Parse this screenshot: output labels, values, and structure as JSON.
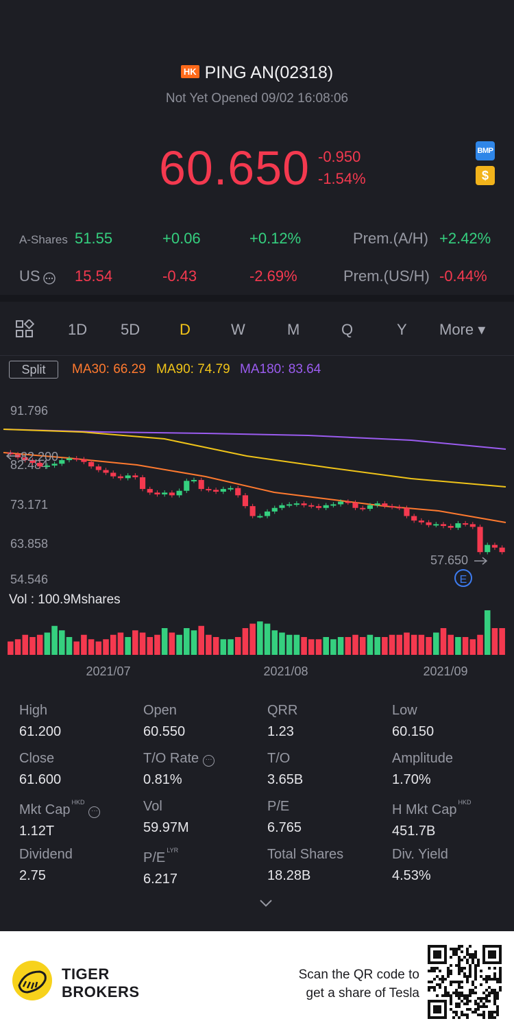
{
  "header": {
    "market_tag": "HK",
    "title": "PING AN(02318)",
    "status": "Not Yet Opened 09/02 16:08:06",
    "price": "60.650",
    "change": "-0.950",
    "change_pct": "-1.54%",
    "badge_bmp": "BMP",
    "badge_usd": "$"
  },
  "cross_listings": [
    {
      "label": "A-Shares",
      "price": "51.55",
      "change": "+0.06",
      "change_pct": "+0.12%",
      "prem_label": "Prem.(A/H)",
      "prem": "+2.42%"
    },
    {
      "label": "US",
      "price": "15.54",
      "change": "-0.43",
      "change_pct": "-2.69%",
      "prem_label": "Prem.(US/H)",
      "prem": "-0.44%"
    }
  ],
  "tabs": [
    "1D",
    "5D",
    "D",
    "W",
    "M",
    "Q",
    "Y",
    "More ▾"
  ],
  "active_tab": "D",
  "chart_controls": {
    "split": "Split",
    "ma30": "MA30: 66.29",
    "ma90": "MA90: 74.79",
    "ma180": "MA180: 83.64"
  },
  "chart_data": {
    "type": "candlestick",
    "y_ticks": [
      "91.796",
      "82.484",
      "73.171",
      "63.858",
      "54.546"
    ],
    "ylim": [
      54.546,
      91.796
    ],
    "x_ticks": [
      "2021/07",
      "2021/08",
      "2021/09"
    ],
    "high_marker": "82.200",
    "low_marker": "57.650",
    "earnings_marker": "E",
    "volume_label": "Vol  : 100.9Mshares",
    "colors": {
      "up": "#35d07f",
      "down": "#f4394f",
      "ma30": "#ff7a2f",
      "ma90": "#f0c419",
      "ma180": "#9b5cf0"
    },
    "closes": [
      82.3,
      81.6,
      81.0,
      80.4,
      79.6,
      79.8,
      80.2,
      81.0,
      81.4,
      81.2,
      80.6,
      79.6,
      78.8,
      78.2,
      77.4,
      77.0,
      77.6,
      77.2,
      74.6,
      73.8,
      73.4,
      73.8,
      73.2,
      74.2,
      76.4,
      76.6,
      74.6,
      74.4,
      74.0,
      74.6,
      74.8,
      73.2,
      70.8,
      68.6,
      68.6,
      69.6,
      70.4,
      71.0,
      71.2,
      71.4,
      71.0,
      70.8,
      70.4,
      71.0,
      71.2,
      71.8,
      71.6,
      70.4,
      70.2,
      71.0,
      71.4,
      70.8,
      70.6,
      70.4,
      68.6,
      67.6,
      67.2,
      66.6,
      66.8,
      66.4,
      66.0,
      67.0,
      66.8,
      66.2,
      60.6,
      62.2,
      61.6,
      60.6
    ],
    "volumes": [
      0.3,
      0.35,
      0.45,
      0.4,
      0.45,
      0.5,
      0.65,
      0.55,
      0.4,
      0.3,
      0.45,
      0.35,
      0.3,
      0.35,
      0.45,
      0.5,
      0.4,
      0.55,
      0.5,
      0.4,
      0.45,
      0.6,
      0.5,
      0.45,
      0.6,
      0.55,
      0.65,
      0.45,
      0.4,
      0.35,
      0.35,
      0.4,
      0.6,
      0.7,
      0.75,
      0.7,
      0.55,
      0.5,
      0.45,
      0.45,
      0.4,
      0.35,
      0.35,
      0.4,
      0.35,
      0.4,
      0.4,
      0.45,
      0.4,
      0.45,
      0.4,
      0.4,
      0.45,
      0.45,
      0.5,
      0.45,
      0.45,
      0.4,
      0.5,
      0.6,
      0.45,
      0.4,
      0.4,
      0.35,
      0.45,
      1.0,
      0.6,
      0.6
    ]
  },
  "stats": [
    {
      "label": "High",
      "value": "61.200"
    },
    {
      "label": "Open",
      "value": "60.550"
    },
    {
      "label": "QRR",
      "value": "1.23"
    },
    {
      "label": "Low",
      "value": "60.150"
    },
    {
      "label": "Close",
      "value": "61.600"
    },
    {
      "label": "T/O Rate",
      "value": "0.81%"
    },
    {
      "label": "T/O",
      "value": "3.65B"
    },
    {
      "label": "Amplitude",
      "value": "1.70%"
    },
    {
      "label": "Mkt Cap",
      "value": "1.12T",
      "sup": "HKD"
    },
    {
      "label": "Vol",
      "value": "59.97M"
    },
    {
      "label": "P/E",
      "value": "6.765"
    },
    {
      "label": "H Mkt Cap",
      "value": "451.7B",
      "sup": "HKD"
    },
    {
      "label": "Dividend",
      "value": "2.75"
    },
    {
      "label": "P/E",
      "value": "6.217",
      "sup": "LYR"
    },
    {
      "label": "Total Shares",
      "value": "18.28B"
    },
    {
      "label": "Div. Yield",
      "value": "4.53%"
    }
  ],
  "footer": {
    "brand_line1": "TIGER",
    "brand_line2": "BROKERS",
    "scan_line1": "Scan the QR code to",
    "scan_line2": "get a share of Tesla"
  }
}
